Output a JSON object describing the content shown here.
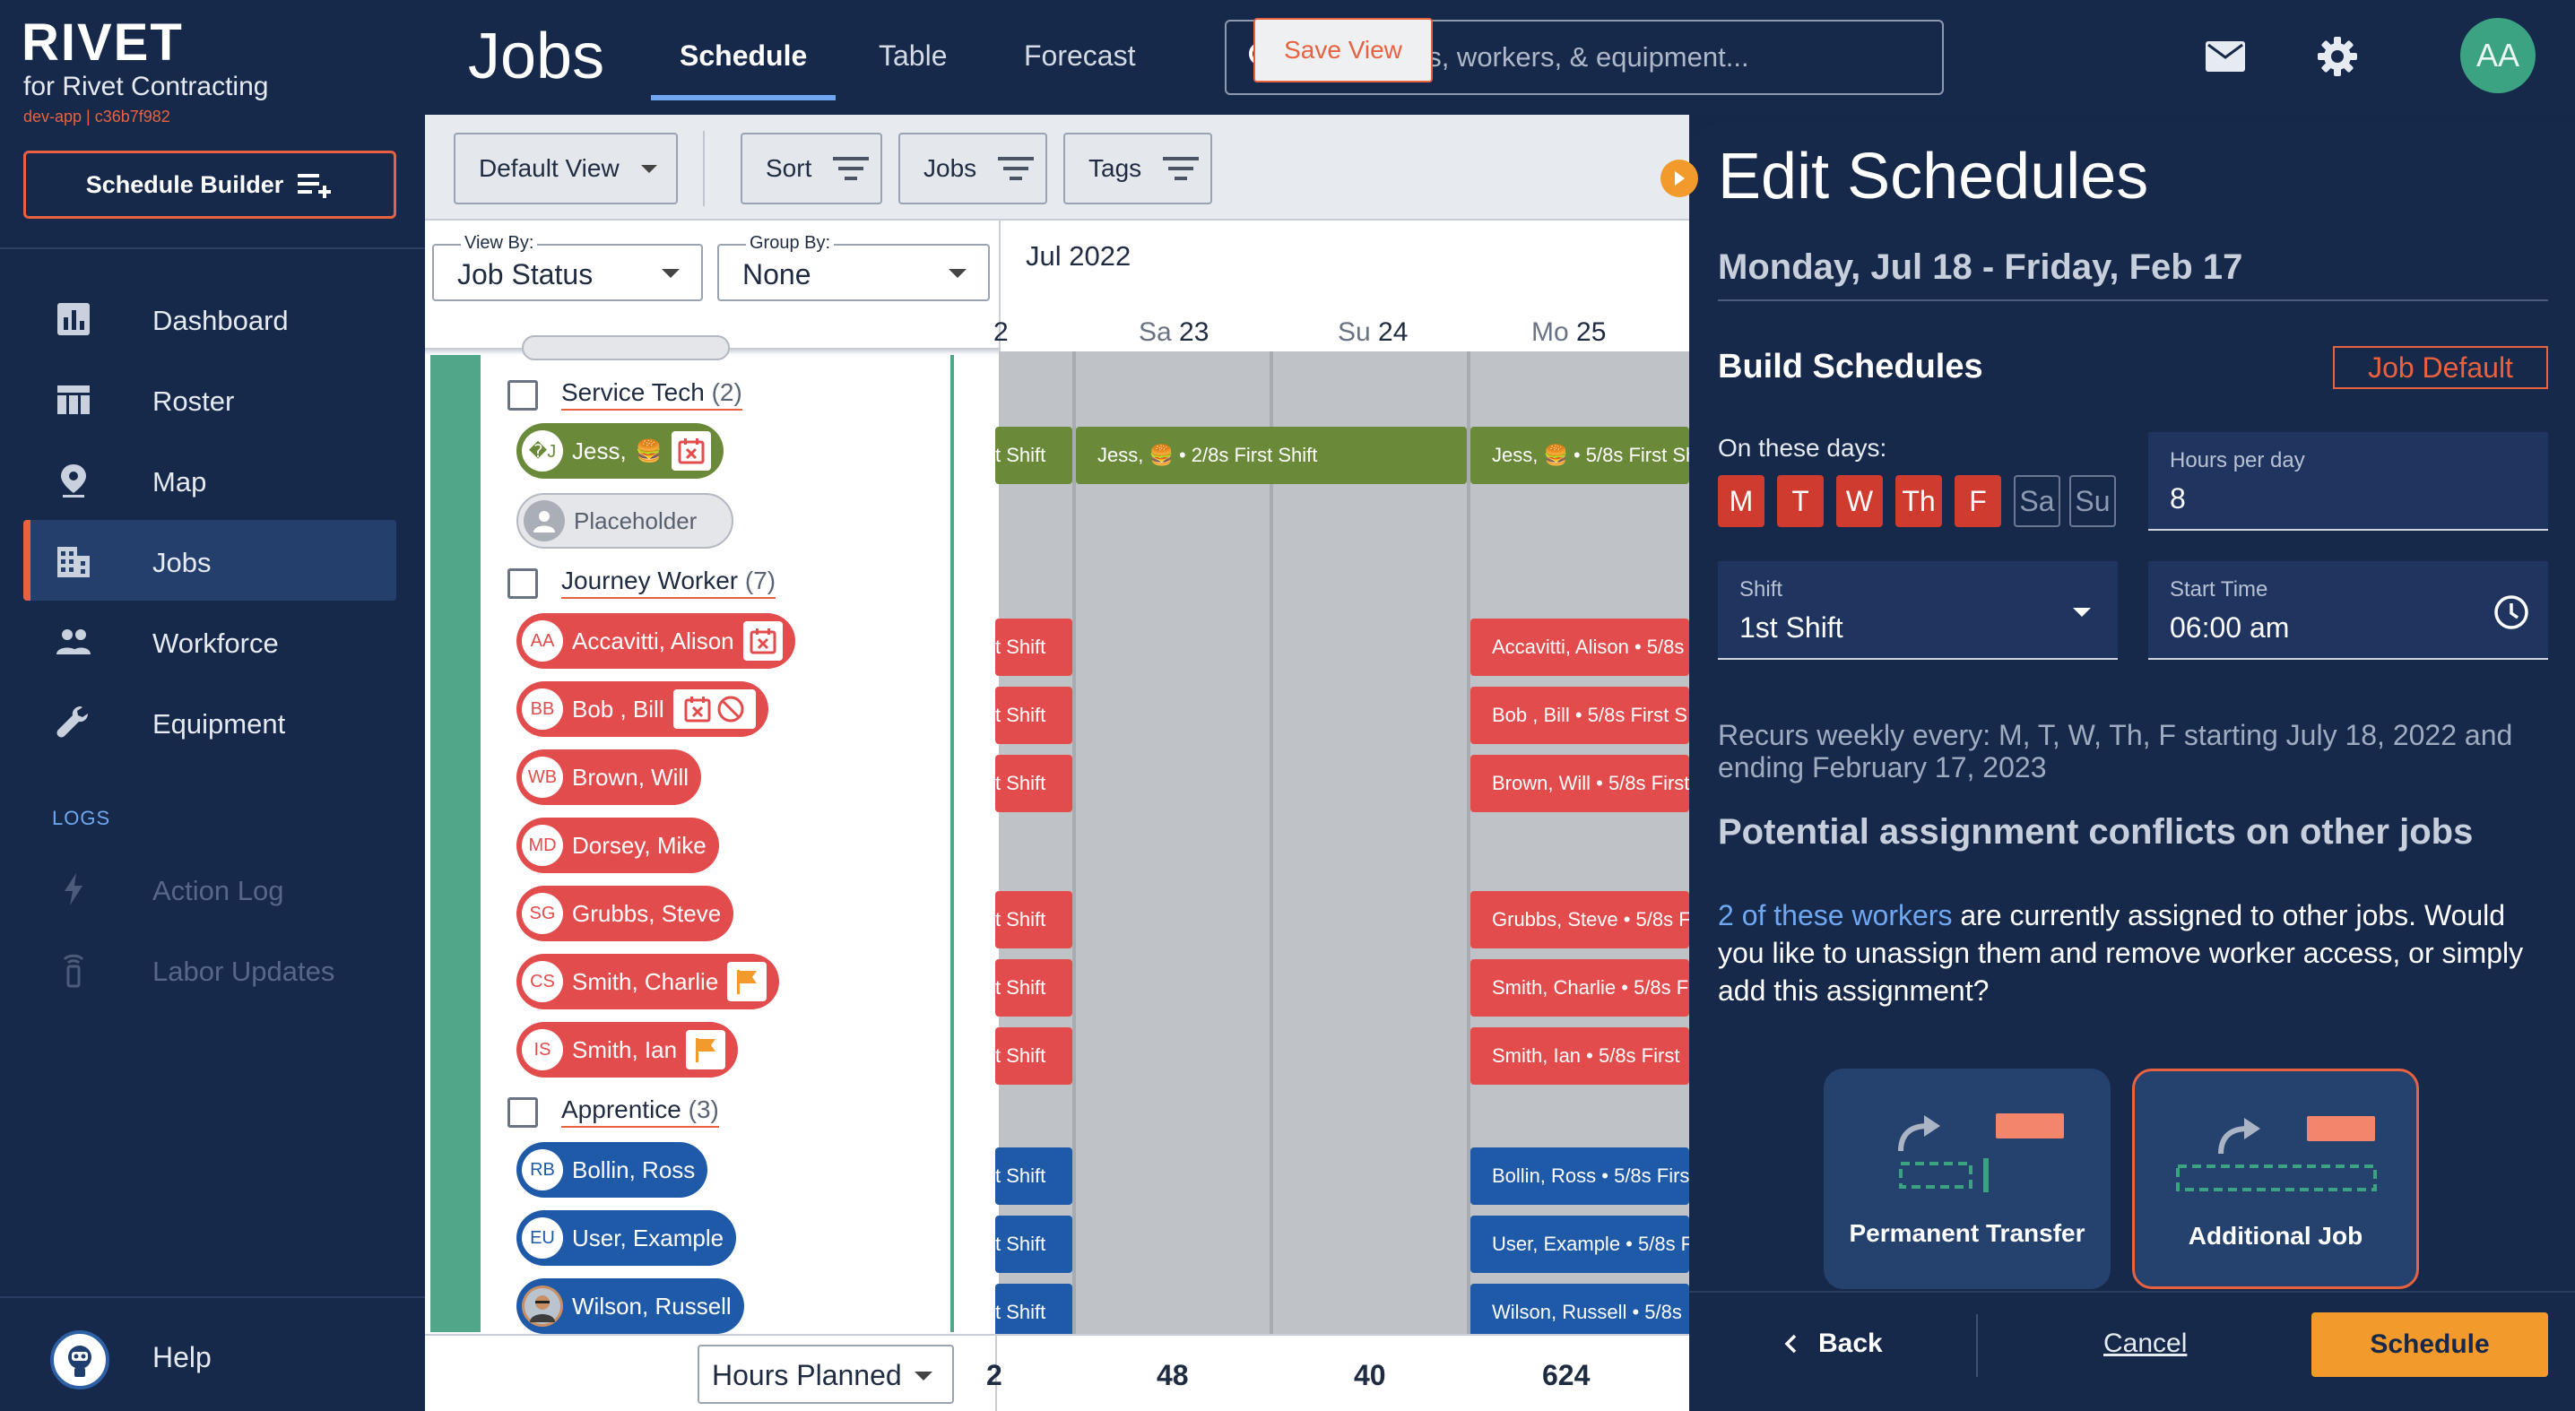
{
  "sidebar": {
    "logo": "RIVET",
    "company": "for Rivet Contracting",
    "dev_tag": "dev-app | c36b7f982",
    "builder_label": "Schedule Builder",
    "nav": [
      {
        "label": "Dashboard",
        "icon": "bar-chart-icon"
      },
      {
        "label": "Roster",
        "icon": "table-icon"
      },
      {
        "label": "Map",
        "icon": "map-pin-icon"
      },
      {
        "label": "Jobs",
        "icon": "building-icon",
        "active": true
      },
      {
        "label": "Workforce",
        "icon": "people-icon"
      },
      {
        "label": "Equipment",
        "icon": "wrench-icon"
      }
    ],
    "logs_heading": "LOGS",
    "logs": [
      {
        "label": "Action Log",
        "icon": "lightning-icon"
      },
      {
        "label": "Labor Updates",
        "icon": "broadcast-icon"
      }
    ],
    "help_label": "Help"
  },
  "header": {
    "title": "Jobs",
    "tabs": [
      {
        "label": "Schedule",
        "active": true
      },
      {
        "label": "Table"
      },
      {
        "label": "Forecast"
      }
    ],
    "search_placeholder": "Search jobs, workers, & equipment...",
    "avatar_initials": "AA"
  },
  "toolbar": {
    "default_view": "Default View",
    "sort": "Sort",
    "jobs": "Jobs",
    "tags": "Tags",
    "save_view": "Save View"
  },
  "filters": {
    "view_by_label": "View By:",
    "view_by_value": "Job Status",
    "group_by_label": "Group By:",
    "group_by_value": "None"
  },
  "groups": [
    {
      "name": "Service Tech",
      "count": "(2)"
    },
    {
      "name": "Journey Worker",
      "count": "(7)"
    },
    {
      "name": "Apprentice",
      "count": "(3)"
    }
  ],
  "workers": {
    "service_tech": [
      {
        "name": "Jess,",
        "initials": "�J"
      },
      {
        "name": "Placeholder"
      }
    ],
    "journey": [
      {
        "initials": "AA",
        "name": "Accavitti, Alison"
      },
      {
        "initials": "BB",
        "name": "Bob , Bill"
      },
      {
        "initials": "WB",
        "name": "Brown, Will"
      },
      {
        "initials": "MD",
        "name": "Dorsey, Mike"
      },
      {
        "initials": "SG",
        "name": "Grubbs, Steve"
      },
      {
        "initials": "CS",
        "name": "Smith, Charlie"
      },
      {
        "initials": "IS",
        "name": "Smith, Ian"
      }
    ],
    "apprentice": [
      {
        "initials": "RB",
        "name": "Bollin, Ross"
      },
      {
        "initials": "EU",
        "name": "User, Example"
      },
      {
        "name": "Wilson, Russell"
      }
    ]
  },
  "footer": {
    "hours_planned": "Hours Planned",
    "totals": [
      "2",
      "48",
      "40",
      "624"
    ]
  },
  "calendar": {
    "month": "Jul 2022",
    "days": [
      {
        "dow": "",
        "num": "2"
      },
      {
        "dow": "Sa",
        "num": "23"
      },
      {
        "dow": "Su",
        "num": "24"
      },
      {
        "dow": "Mo",
        "num": "25"
      }
    ],
    "bars_col0": [
      "t Shift",
      "t Shift",
      "t Shift",
      "t Shift",
      "t Shift",
      "t Shift",
      "t Shift",
      "t Shift",
      "t Shift",
      "t Shift"
    ],
    "bar_sa_green": "Jess, 🍔 • 2/8s First Shift",
    "bars_mo": {
      "green": "Jess, 🍔 • 5/8s First Sh",
      "red": [
        "Accavitti, Alison • 5/8s",
        "Bob , Bill • 5/8s First S",
        "Brown, Will • 5/8s First",
        "Grubbs, Steve • 5/8s F",
        "Smith, Charlie • 5/8s F",
        "Smith, Ian • 5/8s First"
      ],
      "blue": [
        "Bollin, Ross • 5/8s Firs",
        "User, Example • 5/8s F",
        "Wilson, Russell • 5/8s"
      ]
    }
  },
  "edit_panel": {
    "title": "Edit Schedules",
    "date_range": "Monday, Jul 18 - Friday, Feb 17",
    "build_heading": "Build Schedules",
    "job_default": "Job Default",
    "days_label": "On these days:",
    "days": [
      {
        "label": "M",
        "on": true
      },
      {
        "label": "T",
        "on": true
      },
      {
        "label": "W",
        "on": true
      },
      {
        "label": "Th",
        "on": true
      },
      {
        "label": "F",
        "on": true
      },
      {
        "label": "Sa",
        "on": false
      },
      {
        "label": "Su",
        "on": false
      }
    ],
    "hours_label": "Hours per day",
    "hours_value": "8",
    "shift_label": "Shift",
    "shift_value": "1st Shift",
    "start_label": "Start Time",
    "start_value": "06:00 am",
    "recur_text": "Recurs weekly every: M, T, W, Th, F starting July 18, 2022 and ending February 17, 2023",
    "conflict_heading": "Potential assignment conflicts on other jobs",
    "conflict_link": "2 of these workers",
    "conflict_rest": " are currently assigned to other jobs. Would you like to unassign them and remove worker access, or simply add this assignment?",
    "cards": [
      {
        "label": "Permanent Transfer"
      },
      {
        "label": "Additional Job",
        "selected": true
      }
    ],
    "back": "Back",
    "cancel": "Cancel",
    "schedule": "Schedule"
  },
  "colors": {
    "navy": "#17294a",
    "accent_orange": "#e8623f",
    "schedule_orange": "#f39a2c",
    "worker_red": "#e24c4c",
    "worker_blue": "#1e5aa8",
    "service_green": "#6a8a3a",
    "group_green": "#4fa688"
  }
}
